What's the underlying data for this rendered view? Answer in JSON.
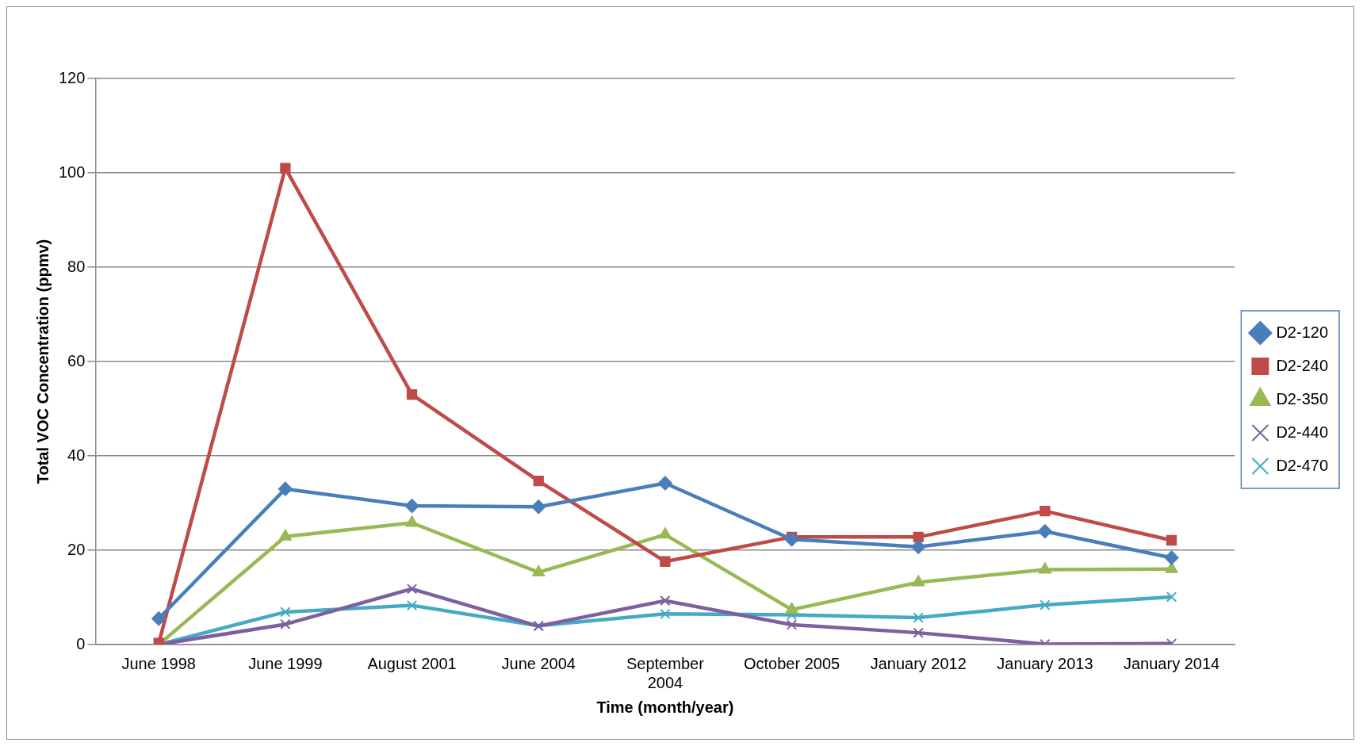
{
  "chart_data": {
    "type": "line",
    "xlabel": "Time (month/year)",
    "ylabel": "Total VOC Concentration (ppmv)",
    "categories": [
      "June 1998",
      "June 1999",
      "August 2001",
      "June 2004",
      "September 2004",
      "October 2005",
      "January 2012",
      "January 2013",
      "January 2014"
    ],
    "ylim": [
      0,
      120
    ],
    "yticks": [
      0,
      20,
      40,
      60,
      80,
      100,
      120
    ],
    "grid": "y",
    "legend": "right",
    "line_style": "solid",
    "series": [
      {
        "name": "D2-120",
        "color": "#4a7ebb",
        "marker": "diamond",
        "values": [
          5.5,
          33,
          29.4,
          29.2,
          34.2,
          22.3,
          20.7,
          24,
          18.4
        ]
      },
      {
        "name": "D2-240",
        "color": "#be4b48",
        "marker": "square",
        "values": [
          0.3,
          101,
          53,
          34.7,
          17.6,
          22.8,
          22.8,
          28.3,
          22.1
        ]
      },
      {
        "name": "D2-350",
        "color": "#98b954",
        "marker": "triangle",
        "values": [
          0,
          22.9,
          25.8,
          15.3,
          23.3,
          7.4,
          13.2,
          15.9,
          16
        ]
      },
      {
        "name": "D2-440",
        "color": "#7d60a0",
        "marker": "cross",
        "values": [
          0,
          4.3,
          11.8,
          3.9,
          9.3,
          4.2,
          2.5,
          0.1,
          0.2
        ]
      },
      {
        "name": "D2-470",
        "color": "#46aac5",
        "marker": "cross",
        "values": [
          0,
          6.9,
          8.3,
          4,
          6.5,
          6.3,
          5.7,
          8.4,
          10.1
        ]
      }
    ]
  }
}
